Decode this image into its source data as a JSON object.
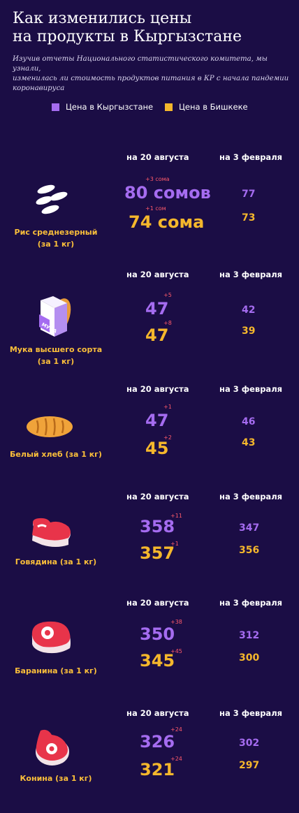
{
  "title": "Как изменились цены\nна продукты в Кыргызстане",
  "subtitle": "Изучив отчеты Национального статистического комитета, мы узнали,\nизменилась ли стоимость продуктов питания в КР с начала пандемии\nкоронавируса",
  "legend": {
    "kg_label": "Цена в Кыргызстане",
    "bishkek_label": "Цена в Бишкеке"
  },
  "colors": {
    "background": "#1b0d45",
    "kyrgyzstan": "#a56cf0",
    "bishkek": "#f5b72c",
    "delta": "#ff5a6a"
  },
  "products": [
    {
      "icon": "rice-icon",
      "col_a": "на 20 августа",
      "col_b": "на 3 февраля",
      "label": "Рис среднезерный\n(за 1 кг)",
      "kg_aug": "80 сомов",
      "kg_delta": "+3 сома",
      "bk_aug": "74 сома",
      "bk_delta": "+1 сом",
      "kg_feb": "77",
      "bk_feb": "73"
    },
    {
      "icon": "flour-icon",
      "col_a": "на 20 августа",
      "col_b": "на 3 февраля",
      "label": "Мука высшего сорта\n(за 1 кг)",
      "icon_text": "МУКА",
      "kg_aug": "47",
      "kg_delta": "+5",
      "bk_aug": "47",
      "bk_delta": "+8",
      "kg_feb": "42",
      "bk_feb": "39"
    },
    {
      "icon": "bread-icon",
      "col_a": "на 20 августа",
      "col_b": "на 3 февраля",
      "label": "Белый хлеб (за 1 кг)",
      "kg_aug": "47",
      "kg_delta": "+1",
      "bk_aug": "45",
      "bk_delta": "+2",
      "kg_feb": "46",
      "bk_feb": "43"
    },
    {
      "icon": "beef-icon",
      "col_a": "на 20 августа",
      "col_b": "на 3 февраля",
      "label": "Говядина (за 1 кг)",
      "kg_aug": "358",
      "kg_delta": "+11",
      "bk_aug": "357",
      "bk_delta": "+1",
      "kg_feb": "347",
      "bk_feb": "356"
    },
    {
      "icon": "mutton-icon",
      "col_a": "на 20 августа",
      "col_b": "на 3 февраля",
      "label": "Баранина (за 1 кг)",
      "kg_aug": "350",
      "kg_delta": "+38",
      "bk_aug": "345",
      "bk_delta": "+45",
      "kg_feb": "312",
      "bk_feb": "300"
    },
    {
      "icon": "horsemeat-icon",
      "col_a": "на 20 августа",
      "col_b": "на 3 февраля",
      "label": "Конина (за 1 кг)",
      "kg_aug": "326",
      "kg_delta": "+24",
      "bk_aug": "321",
      "bk_delta": "+24",
      "kg_feb": "302",
      "bk_feb": "297"
    }
  ]
}
